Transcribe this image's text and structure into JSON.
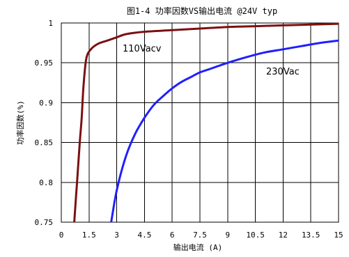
{
  "chart_data": {
    "type": "line",
    "title": "图1-4    功率因数VS输出电流 @24V typ",
    "xlabel": "输出电流  (A)",
    "ylabel": "功率因数(%)",
    "xlim": [
      0,
      15
    ],
    "ylim": [
      0.75,
      1
    ],
    "x_ticks": [
      "0",
      "1.5",
      "3",
      "4.5",
      "6",
      "7.5",
      "9",
      "10.5",
      "12",
      "13.5",
      "15"
    ],
    "y_ticks": [
      "0.75",
      "0.8",
      "0.85",
      "0.9",
      "0.95",
      "1"
    ],
    "grid": true,
    "series": [
      {
        "name": "110Vacv",
        "color": "#7b1010",
        "points": [
          [
            0.7,
            0.75
          ],
          [
            0.85,
            0.8
          ],
          [
            1.0,
            0.85
          ],
          [
            1.1,
            0.88
          ],
          [
            1.2,
            0.92
          ],
          [
            1.35,
            0.955
          ],
          [
            1.6,
            0.967
          ],
          [
            2.0,
            0.974
          ],
          [
            2.5,
            0.978
          ],
          [
            3.0,
            0.982
          ],
          [
            3.5,
            0.986
          ],
          [
            4.5,
            0.989
          ],
          [
            6.0,
            0.991
          ],
          [
            7.5,
            0.993
          ],
          [
            9.0,
            0.995
          ],
          [
            10.5,
            0.996
          ],
          [
            12.0,
            0.997
          ],
          [
            13.5,
            0.998
          ],
          [
            15.0,
            0.999
          ]
        ]
      },
      {
        "name": "230Vac",
        "color": "#1f1fff",
        "points": [
          [
            2.7,
            0.75
          ],
          [
            3.0,
            0.79
          ],
          [
            3.5,
            0.833
          ],
          [
            4.0,
            0.861
          ],
          [
            4.5,
            0.881
          ],
          [
            5.0,
            0.897
          ],
          [
            5.5,
            0.908
          ],
          [
            6.0,
            0.918
          ],
          [
            6.5,
            0.926
          ],
          [
            7.0,
            0.932
          ],
          [
            7.5,
            0.938
          ],
          [
            8.0,
            0.942
          ],
          [
            9.0,
            0.95
          ],
          [
            10.0,
            0.957
          ],
          [
            11.0,
            0.963
          ],
          [
            12.0,
            0.967
          ],
          [
            13.0,
            0.971
          ],
          [
            14.0,
            0.975
          ],
          [
            15.0,
            0.978
          ]
        ]
      }
    ],
    "annotations": [
      "110Vacv",
      "230Vac"
    ]
  }
}
